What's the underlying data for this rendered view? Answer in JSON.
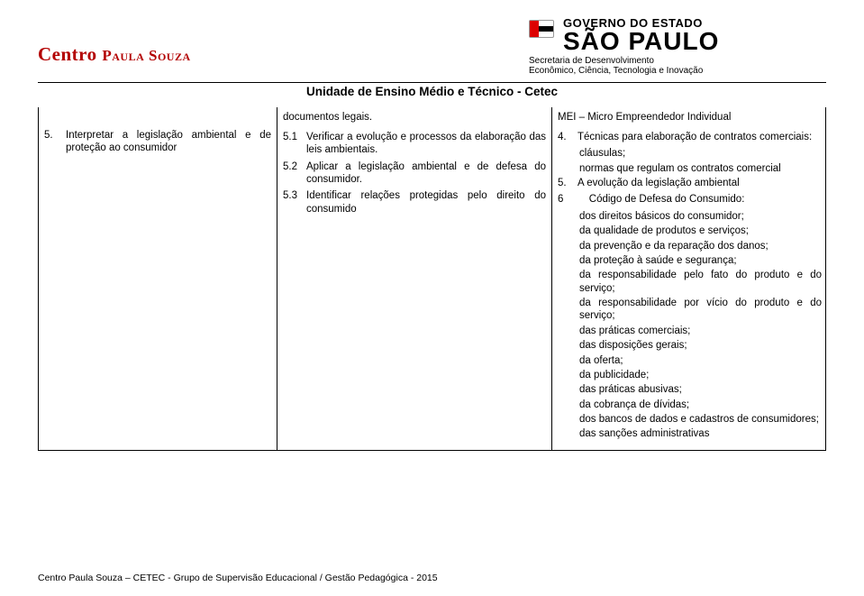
{
  "header": {
    "left_logo_big": "Centro ",
    "left_logo_small": "Paula Souza",
    "gov_line1": "GOVERNO DO ESTADO",
    "gov_line2": "SÃO PAULO",
    "secretaria_l1": "Secretaria de Desenvolvimento",
    "secretaria_l2": "Econômico, Ciência, Tecnologia e Inovação",
    "unidade": "Unidade de Ensino Médio e Técnico - Cetec"
  },
  "col1": {
    "item5_num": "5.",
    "item5_text": "Interpretar a legislação ambiental e de proteção ao consumidor"
  },
  "col2": {
    "doc_legais": "documentos legais.",
    "i51n": "5.1",
    "i51": "Verificar a evolução e processos da elaboração das leis ambientais.",
    "i52n": "5.2",
    "i52": "Aplicar a legislação ambiental e de defesa do consumidor.",
    "i53n": "5.3",
    "i53": "Identificar relações protegidas pelo direito do consumido"
  },
  "col3": {
    "mei": "MEI – Micro Empreendedor Individual",
    "b4n": "4.",
    "b4_head": "Técnicas para elaboração de contratos comerciais:",
    "b4_sub1": "cláusulas;",
    "b4_sub2": "normas que regulam os contratos comercial",
    "b5n": "5.",
    "b5_head": "A evolução da legislação ambiental",
    "b6n": "6",
    "b6_head": "    Código de Defesa do Consumido:",
    "b6_items": [
      "dos direitos básicos do consumidor;",
      "da qualidade de produtos e serviços;",
      "da prevenção e da reparação dos danos;",
      "da proteção à saúde e segurança;",
      "da responsabilidade pelo fato do produto e do serviço;",
      "da responsabilidade por vício do produto e do serviço;",
      "das práticas comerciais;",
      "das disposições gerais;",
      "da oferta;",
      "da publicidade;",
      "das práticas abusivas;",
      "da cobrança de dívidas;",
      "dos bancos de dados e cadastros de consumidores;",
      "das sanções administrativas"
    ]
  },
  "footer": "Centro Paula Souza – CETEC - Grupo de Supervisão Educacional / Gestão Pedagógica - 2015"
}
